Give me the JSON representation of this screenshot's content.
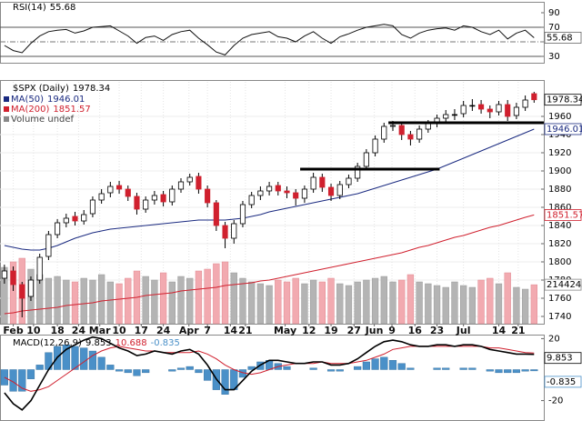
{
  "chart_data": [
    {
      "type": "line",
      "title": "RSI(14)",
      "color": "#111111",
      "values": [
        45,
        38,
        35,
        48,
        58,
        64,
        66,
        67,
        62,
        65,
        70,
        71,
        72,
        65,
        58,
        48,
        56,
        58,
        52,
        60,
        64,
        66,
        55,
        46,
        36,
        32,
        45,
        55,
        60,
        62,
        64,
        57,
        55,
        50,
        58,
        64,
        55,
        48,
        57,
        61,
        66,
        70,
        72,
        74,
        72,
        60,
        55,
        62,
        66,
        68,
        69,
        66,
        72,
        70,
        64,
        60,
        66,
        54,
        62,
        66,
        55.68
      ],
      "ylim": [
        20,
        100
      ],
      "yticks": [
        30,
        70,
        90
      ],
      "bands": [
        30,
        70
      ],
      "midline": 50
    },
    {
      "type": "candlestick",
      "title": "$SPX (Daily)",
      "xlim": [
        -0.5,
        61.1
      ],
      "xticks": [
        {
          "value": 1,
          "label": "Feb"
        },
        {
          "value": 3.3,
          "label": "10"
        },
        {
          "value": 6,
          "label": "18"
        },
        {
          "value": 8.4,
          "label": "24"
        },
        {
          "value": 10.8,
          "label": "Mar"
        },
        {
          "value": 13,
          "label": "10"
        },
        {
          "value": 15.5,
          "label": "17"
        },
        {
          "value": 18,
          "label": "24"
        },
        {
          "value": 20.9,
          "label": "Apr"
        },
        {
          "value": 23,
          "label": "7"
        },
        {
          "value": 25.6,
          "label": "14"
        },
        {
          "value": 27.3,
          "label": "21"
        },
        {
          "value": 31.8,
          "label": "May"
        },
        {
          "value": 34.5,
          "label": "12"
        },
        {
          "value": 37,
          "label": "19"
        },
        {
          "value": 39.6,
          "label": "27"
        },
        {
          "value": 41.9,
          "label": "Jun"
        },
        {
          "value": 43.9,
          "label": "9"
        },
        {
          "value": 46.5,
          "label": "16"
        },
        {
          "value": 49,
          "label": "23"
        },
        {
          "value": 52,
          "label": "Jul"
        },
        {
          "value": 56,
          "label": "14"
        },
        {
          "value": 58.2,
          "label": "21"
        }
      ],
      "open": [
        1782,
        1790,
        1775,
        1762,
        1780,
        1806,
        1830,
        1843,
        1850,
        1845,
        1853,
        1868,
        1876,
        1884,
        1880,
        1872,
        1858,
        1868,
        1874,
        1866,
        1880,
        1888,
        1894,
        1880,
        1865,
        1840,
        1826,
        1842,
        1863,
        1873,
        1878,
        1884,
        1878,
        1876,
        1870,
        1880,
        1893,
        1882,
        1873,
        1885,
        1892,
        1905,
        1920,
        1935,
        1949,
        1950,
        1940,
        1935,
        1946,
        1952,
        1958,
        1962,
        1963,
        1972,
        1973,
        1968,
        1965,
        1973,
        1961,
        1970,
        1985
      ],
      "high": [
        1797,
        1795,
        1778,
        1784,
        1809,
        1834,
        1847,
        1853,
        1855,
        1857,
        1872,
        1880,
        1888,
        1889,
        1884,
        1876,
        1872,
        1878,
        1878,
        1884,
        1892,
        1897,
        1898,
        1884,
        1868,
        1844,
        1846,
        1867,
        1877,
        1883,
        1888,
        1888,
        1883,
        1880,
        1884,
        1898,
        1897,
        1886,
        1889,
        1896,
        1909,
        1924,
        1939,
        1953,
        1955,
        1954,
        1944,
        1950,
        1956,
        1962,
        1967,
        1968,
        1977,
        1979,
        1978,
        1972,
        1977,
        1978,
        1975,
        1983,
        1987
      ],
      "low": [
        1776,
        1768,
        1739,
        1757,
        1776,
        1802,
        1826,
        1838,
        1840,
        1841,
        1849,
        1864,
        1871,
        1875,
        1867,
        1852,
        1854,
        1863,
        1861,
        1862,
        1876,
        1884,
        1875,
        1860,
        1834,
        1815,
        1820,
        1838,
        1859,
        1868,
        1873,
        1873,
        1870,
        1862,
        1865,
        1876,
        1877,
        1867,
        1869,
        1881,
        1888,
        1901,
        1916,
        1931,
        1944,
        1934,
        1928,
        1931,
        1942,
        1948,
        1954,
        1956,
        1959,
        1966,
        1963,
        1958,
        1961,
        1955,
        1957,
        1966,
        1975
      ],
      "close": [
        1790,
        1775,
        1760,
        1780,
        1805,
        1830,
        1843,
        1848,
        1845,
        1852,
        1868,
        1875,
        1883,
        1880,
        1872,
        1858,
        1868,
        1873,
        1866,
        1880,
        1888,
        1893,
        1880,
        1865,
        1840,
        1826,
        1842,
        1863,
        1873,
        1878,
        1883,
        1878,
        1876,
        1870,
        1880,
        1893,
        1882,
        1873,
        1885,
        1892,
        1905,
        1920,
        1935,
        1949,
        1950,
        1940,
        1935,
        1946,
        1952,
        1958,
        1962,
        1962,
        1972,
        1972,
        1968,
        1965,
        1973,
        1960,
        1970,
        1978,
        1978.34
      ],
      "up_color": "#ffffff",
      "down_color": "#d0202e",
      "ylim": [
        1732,
        1998
      ],
      "yticks": [
        1740,
        1760,
        1780,
        1800,
        1820,
        1840,
        1860,
        1880,
        1900,
        1920,
        1940,
        1960
      ],
      "grid": true,
      "series": [
        {
          "name": "MA(50)",
          "color": "#1a2a80",
          "values": [
            1818,
            1816,
            1814,
            1813,
            1813,
            1815,
            1818,
            1822,
            1826,
            1829,
            1832,
            1834,
            1836,
            1837,
            1838,
            1839,
            1840,
            1841,
            1842,
            1843,
            1844,
            1845,
            1846,
            1846,
            1846,
            1846,
            1847,
            1848,
            1850,
            1852,
            1855,
            1857,
            1859,
            1861,
            1863,
            1865,
            1867,
            1869,
            1871,
            1873,
            1875,
            1878,
            1881,
            1884,
            1887,
            1890,
            1893,
            1896,
            1899,
            1902,
            1906,
            1910,
            1914,
            1918,
            1922,
            1926,
            1930,
            1934,
            1938,
            1942,
            1946.01
          ]
        },
        {
          "name": "MA(200)",
          "color": "#d0202e",
          "values": [
            1743,
            1744,
            1746,
            1747,
            1748,
            1749,
            1750,
            1752,
            1753,
            1754,
            1755,
            1757,
            1758,
            1759,
            1760,
            1761,
            1763,
            1764,
            1765,
            1766,
            1768,
            1769,
            1770,
            1771,
            1772,
            1774,
            1775,
            1776,
            1777,
            1779,
            1780,
            1782,
            1784,
            1786,
            1788,
            1790,
            1792,
            1794,
            1796,
            1798,
            1800,
            1802,
            1804,
            1806,
            1808,
            1810,
            1813,
            1816,
            1818,
            1821,
            1824,
            1827,
            1829,
            1832,
            1835,
            1838,
            1840,
            1843,
            1846,
            1849,
            1851.57
          ]
        }
      ],
      "volume": {
        "name": "Volume undef",
        "ylim": [
          0,
          6000000
        ],
        "up_color": "#b4b4b4",
        "down_color": "#f2aab0",
        "values": [
          3100000,
          3400000,
          3600000,
          3000000,
          2700000,
          2500000,
          2600000,
          2400000,
          2300000,
          2500000,
          2400000,
          2700000,
          2300000,
          2200000,
          2500000,
          2900000,
          2600000,
          2400000,
          2800000,
          2300000,
          2600000,
          2500000,
          2900000,
          3000000,
          3300000,
          3400000,
          2800000,
          2500000,
          2300000,
          2200000,
          2100000,
          2400000,
          2300000,
          2500000,
          2200000,
          2400000,
          2300000,
          2500000,
          2200000,
          2100000,
          2300000,
          2400000,
          2500000,
          2600000,
          2300000,
          2400000,
          2700000,
          2300000,
          2200000,
          2100000,
          2000000,
          2300000,
          2100000,
          2000000,
          2400000,
          2500000,
          2200000,
          2800000,
          2000000,
          1900000,
          2144243
        ]
      },
      "trendlines": [
        {
          "x0": 33.5,
          "x1": 49.3,
          "y": 1902
        },
        {
          "x0": 43.5,
          "x1": 61.1,
          "y": 1953
        }
      ]
    },
    {
      "type": "macd",
      "title": "MACD(12,26,9)",
      "ylim": [
        -32,
        22
      ],
      "yticks": [
        -20,
        20
      ],
      "macd": {
        "color": "#000000",
        "values": [
          -15,
          -22,
          -26,
          -20,
          -10,
          0,
          8,
          13,
          16,
          19,
          21,
          20,
          17,
          14,
          12,
          9,
          10,
          12,
          11,
          10,
          12,
          13,
          10,
          3,
          -6,
          -13,
          -13,
          -7,
          -1,
          3,
          6,
          6,
          5,
          4,
          4,
          5,
          5,
          3,
          3,
          4,
          7,
          11,
          15,
          18,
          19,
          18,
          16,
          15,
          15,
          16,
          16,
          15,
          16,
          16,
          15,
          13,
          12,
          11,
          10,
          10,
          9.853
        ]
      },
      "signal": {
        "color": "#d0202e",
        "values": [
          -5,
          -8,
          -12,
          -14,
          -13,
          -11,
          -7,
          -3,
          1,
          5,
          9,
          12,
          14,
          15,
          14,
          13,
          12,
          12,
          11,
          11,
          11,
          11,
          12,
          10,
          7,
          3,
          0,
          -2,
          -3,
          -2,
          0,
          2,
          3,
          4,
          4,
          4,
          5,
          4,
          4,
          4,
          5,
          6,
          8,
          10,
          13,
          14,
          15,
          15,
          15,
          15,
          15,
          15,
          15,
          15,
          15,
          14,
          14,
          13,
          12,
          11,
          10.688
        ]
      },
      "histogram": {
        "color": "#4a90c8",
        "values": [
          -10,
          -14,
          -14,
          -6,
          3,
          11,
          15,
          16,
          15,
          14,
          12,
          8,
          3,
          -1,
          -2,
          -4,
          -2,
          0,
          0,
          -1,
          1,
          2,
          -2,
          -7,
          -13,
          -16,
          -13,
          -5,
          2,
          5,
          6,
          4,
          2,
          0,
          0,
          1,
          0,
          -1,
          -1,
          0,
          2,
          5,
          7,
          8,
          6,
          4,
          1,
          0,
          0,
          1,
          1,
          0,
          1,
          1,
          0,
          -1,
          -2,
          -2,
          -2,
          -1,
          -0.835
        ]
      }
    }
  ]
}
